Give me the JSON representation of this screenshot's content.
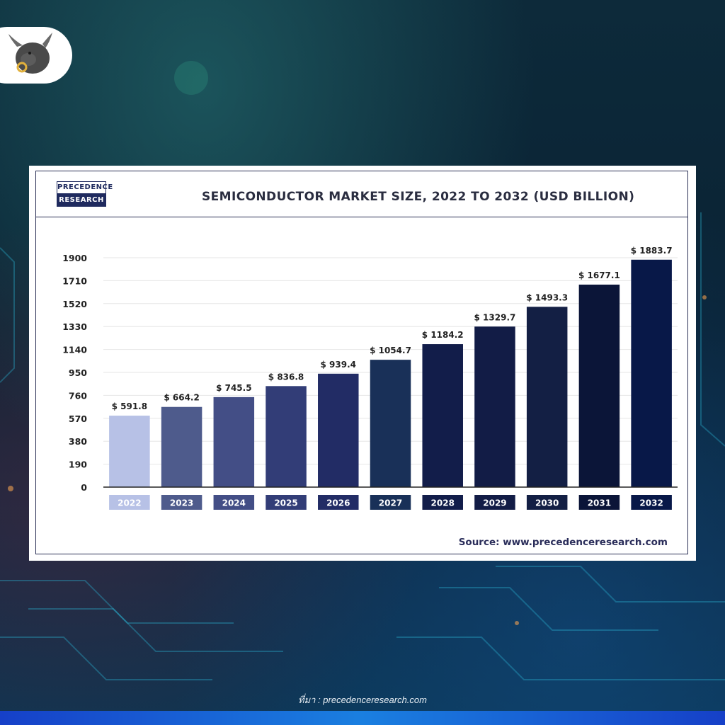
{
  "brand": {
    "line1": "PRECEDENCE",
    "line2": "RESEARCH"
  },
  "source_text": "Source: www.precedenceresearch.com",
  "caption": "ที่มา : precedenceresearch.com",
  "logo_icon": "bull-logo-icon",
  "colors": {
    "bar_colors": [
      "#b7c1e6",
      "#4e5b8c",
      "#434e86",
      "#323d77",
      "#222c65",
      "#193058",
      "#121d4a",
      "#121c46",
      "#131f44",
      "#0b1538",
      "#081848"
    ],
    "axis": "#222222",
    "grid": "#e6e6e6"
  },
  "chart_data": {
    "type": "bar",
    "title": "SEMICONDUCTOR MARKET SIZE, 2022 TO 2032 (USD BILLION)",
    "xlabel": "",
    "ylabel": "",
    "categories": [
      "2022",
      "2023",
      "2024",
      "2025",
      "2026",
      "2027",
      "2028",
      "2029",
      "2030",
      "2031",
      "2032"
    ],
    "values": [
      591.8,
      664.2,
      745.5,
      836.8,
      939.4,
      1054.7,
      1184.2,
      1329.7,
      1493.3,
      1677.1,
      1883.7
    ],
    "value_labels": [
      "$ 591.8",
      "$ 664.2",
      "$ 745.5",
      "$ 836.8",
      "$ 939.4",
      "$ 1054.7",
      "$ 1184.2",
      "$ 1329.7",
      "$ 1493.3",
      "$ 1677.1",
      "$ 1883.7"
    ],
    "yticks": [
      0,
      190,
      380,
      570,
      760,
      950,
      1140,
      1330,
      1520,
      1710,
      1900
    ],
    "ylim": [
      0,
      1900
    ],
    "grid": true,
    "legend": "none"
  }
}
